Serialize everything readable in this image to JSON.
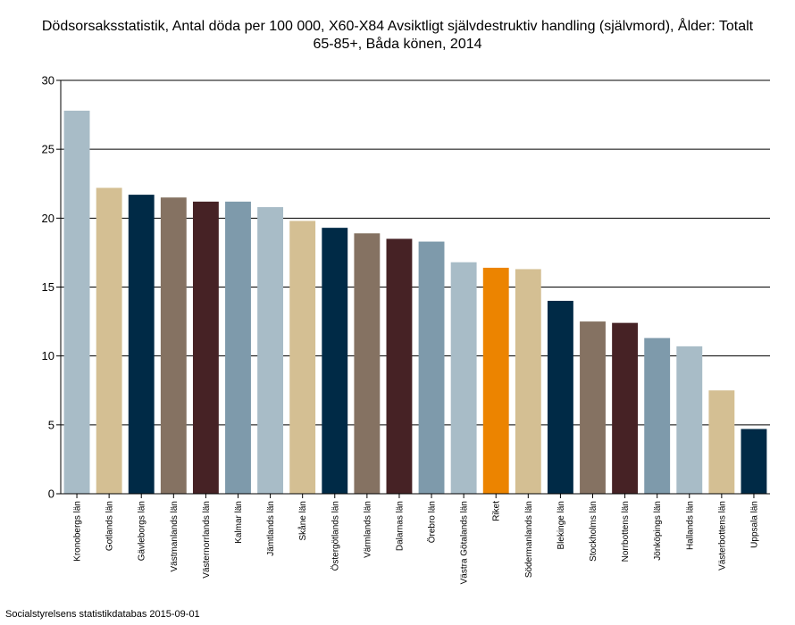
{
  "title_line1": "Dödsorsaksstatistik, Antal döda per 100 000, X60-X84 Avsiktligt självdestruktiv handling (självmord), Ålder: Totalt",
  "title_line2": "65-85+, Båda könen, 2014",
  "source": "Socialstyrelsens statistikdatabas 2015-09-01",
  "chart_data": {
    "type": "bar",
    "title": "Dödsorsaksstatistik, Antal döda per 100 000, X60-X84 Avsiktligt självdestruktiv handling (självmord), Ålder: Totalt 65-85+, Båda könen, 2014",
    "xlabel": "",
    "ylabel": "",
    "ylim": [
      0,
      30
    ],
    "yticks": [
      0,
      5,
      10,
      15,
      20,
      25,
      30
    ],
    "grid": true,
    "categories": [
      "Kronobergs län",
      "Gotlands län",
      "Gävleborgs län",
      "Västmanlands län",
      "Västernorrlands län",
      "Kalmar län",
      "Jämtlands län",
      "Skåne län",
      "Östergötlands län",
      "Värmlands län",
      "Dalarnas län",
      "Örebro län",
      "Västra Götalands län",
      "Riket",
      "Södermanlands län",
      "Blekinge län",
      "Stockholms län",
      "Norrbottens län",
      "Jönköpings län",
      "Hallands län",
      "Västerbottens län",
      "Uppsala län"
    ],
    "values": [
      27.8,
      22.2,
      21.7,
      21.5,
      21.2,
      21.2,
      20.8,
      19.8,
      19.3,
      18.9,
      18.5,
      18.3,
      16.8,
      16.4,
      16.3,
      14.0,
      12.5,
      12.4,
      11.3,
      10.7,
      7.5,
      4.7
    ],
    "colors": [
      "#a8bcc7",
      "#d4bf93",
      "#002a46",
      "#857262",
      "#462225",
      "#7e9aab",
      "#a8bcc7",
      "#d4bf93",
      "#002a46",
      "#857262",
      "#462225",
      "#7e9aab",
      "#a8bcc7",
      "#ec8400",
      "#d4bf93",
      "#002a46",
      "#857262",
      "#462225",
      "#7e9aab",
      "#a8bcc7",
      "#d4bf93",
      "#002a46"
    ]
  }
}
